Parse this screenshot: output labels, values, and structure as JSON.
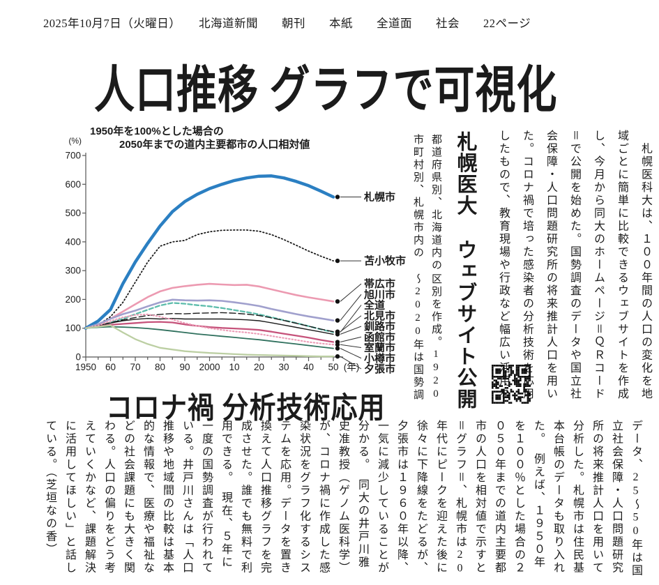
{
  "header": {
    "dateline": "2025年10月7日（火曜日）　　北海道新聞　　朝刊　　本紙　　全道面　　社会　　22ページ"
  },
  "headlines": {
    "main": "人口推移 グラフで可視化",
    "sub": "コロナ禍 分析技術応用",
    "vertical": "札幌医大 ウェブサイト公開"
  },
  "articles": {
    "lead": "　札幌医科大は、１００年間の人口の変化を地域ごとに簡単に比較できるウェブサイトを作成し、今月から同大のホームページ＝ＱＲコード＝で公開を始めた。国勢調査のデータや国立社会保障・人口問題研究所の将来推計人口を用いた。コロナ禍で培った感染者の分析技術を応用したもので、教育現場や行政など幅広い活用を想定している。",
    "body": "データ、25～50年は国立社会保障・人口問題研究所の将来推計人口を用いて分析した。札幌市は住民基本台帳のデータも取り入れた。　例えば、１９５０年を１００％とした場合の２０５０年までの道内主要都市の人口を相対値で示すと＝グラフ＝、札幌市は20年代にピークを迎えた後に徐々に下降線をたどるが、夕張市は１９６０年以降、一気に減少していることが分かる。　同大の井戸川雅史准教授（ゲノム医科学）が、コロナ禍に作成した感染状況をグラフ化するシステムを応用。データを置き換えて人口推移グラフを完成させた。誰でも無料で利用できる。　現在、５年に一度の国勢調査が行われている。井戸川さんは「人口推移や地域間の比較は基本的な情報で、医療や福祉などの社会課題にも大きく関わる。人口の偏りをどう考えていくかなど、課題解決に活用してほしい」と話している。（芝垣なの香）"
  },
  "chart_caption": {
    "row1": "都道府県別、北海道内の市町村別、札幌市内の",
    "row2": "区別を作成。1920～2020年は国勢調査の"
  },
  "chart_data": {
    "type": "line",
    "title_line1": "1950年を100%とした場合の",
    "title_line2": "2050年までの道内主要都市の人口相対値",
    "unit_label": "(%)",
    "x_suffix_label": "(年)",
    "x_years": [
      1950,
      1955,
      1960,
      1965,
      1970,
      1975,
      1980,
      1985,
      1990,
      1995,
      2000,
      2005,
      2010,
      2015,
      2020,
      2025,
      2030,
      2035,
      2040,
      2045,
      2050
    ],
    "x_tick_labels": [
      "1950",
      "60",
      "70",
      "80",
      "90",
      "2000",
      "10",
      "20",
      "30",
      "40",
      "50"
    ],
    "y_ticks": [
      0,
      100,
      200,
      300,
      400,
      500,
      600,
      700
    ],
    "ylim": [
      0,
      700
    ],
    "grid": false,
    "legend_position": "right-labels",
    "series": [
      {
        "name": "札幌市",
        "color": "#2b7fc2",
        "width": 4.5,
        "dash": "",
        "values": [
          100,
          125,
          165,
          255,
          330,
          395,
          455,
          505,
          540,
          565,
          585,
          600,
          613,
          622,
          628,
          629,
          622,
          610,
          595,
          576,
          556
        ]
      },
      {
        "name": "苫小牧市",
        "color": "#1b1b1b",
        "width": 1.8,
        "dash": "1.5 3.2",
        "values": [
          100,
          112,
          140,
          190,
          260,
          330,
          385,
          400,
          405,
          425,
          435,
          440,
          441,
          441,
          437,
          425,
          408,
          388,
          368,
          350,
          334
        ]
      },
      {
        "name": "帯広市",
        "color": "#ec9ab1",
        "width": 2.6,
        "dash": "",
        "values": [
          100,
          113,
          133,
          158,
          183,
          208,
          228,
          240,
          246,
          251,
          254,
          252,
          250,
          251,
          245,
          235,
          225,
          215,
          207,
          200,
          193
        ]
      },
      {
        "name": "旭川市",
        "color": "#a0a0cd",
        "width": 2.6,
        "dash": "",
        "values": [
          100,
          114,
          133,
          149,
          161,
          176,
          190,
          199,
          197,
          196,
          197,
          195,
          190,
          184,
          177,
          167,
          158,
          149,
          141,
          134,
          127
        ]
      },
      {
        "name": "全道",
        "color": "#5cbcab",
        "width": 2.3,
        "dash": "6 3.5",
        "values": [
          100,
          109,
          119,
          133,
          149,
          164,
          179,
          188,
          185,
          180,
          176,
          170,
          163,
          156,
          148,
          138,
          128,
          118,
          107,
          96,
          86
        ]
      },
      {
        "name": "北見市",
        "color": "#1b1b1b",
        "width": 1.4,
        "dash": "9 4",
        "values": [
          100,
          109,
          119,
          129,
          137,
          144,
          148,
          151,
          150,
          152,
          153,
          154,
          152,
          149,
          144,
          136,
          127,
          117,
          107,
          97,
          88
        ]
      },
      {
        "name": "釧路市",
        "color": "#1b1b1b",
        "width": 1.4,
        "dash": "",
        "values": [
          100,
          109,
          118,
          126,
          131,
          134,
          132,
          134,
          132,
          132,
          132,
          132,
          131,
          129,
          126,
          119,
          111,
          103,
          95,
          87,
          79
        ]
      },
      {
        "name": "函館市",
        "color": "#c6537b",
        "width": 2.3,
        "dash": "",
        "values": [
          100,
          106,
          112,
          115,
          118,
          121,
          122,
          120,
          113,
          108,
          104,
          101,
          99,
          97,
          94,
          88,
          81,
          74,
          67,
          59,
          52
        ]
      },
      {
        "name": "室蘭市",
        "color": "#eb9cb6",
        "width": 2.1,
        "dash": "1.5 3",
        "values": [
          100,
          110,
          125,
          138,
          146,
          148,
          140,
          130,
          118,
          108,
          100,
          94,
          89,
          85,
          80,
          73,
          66,
          59,
          52,
          47,
          43
        ]
      },
      {
        "name": "小樽市",
        "color": "#2f705d",
        "width": 1.8,
        "dash": "",
        "values": [
          100,
          103,
          105,
          104,
          102,
          99,
          95,
          90,
          85,
          80,
          76,
          72,
          68,
          64,
          60,
          55,
          50,
          45,
          40,
          35,
          30
        ]
      },
      {
        "name": "夕張市",
        "color": "#bccfa3",
        "width": 2.3,
        "dash": "",
        "values": [
          100,
          105,
          110,
          85,
          62,
          45,
          32,
          26,
          20,
          17,
          14,
          12,
          10,
          8,
          7,
          6,
          5,
          4,
          3,
          2,
          2
        ]
      }
    ]
  }
}
